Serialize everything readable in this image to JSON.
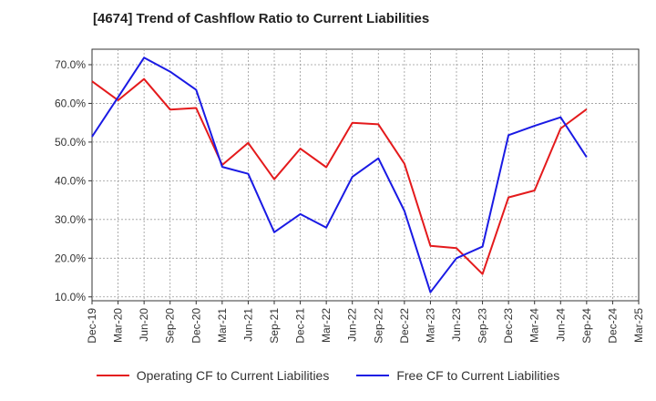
{
  "chart_data": {
    "type": "line",
    "title": "[4674]  Trend of Cashflow Ratio to Current Liabilities",
    "xlabel": "",
    "ylabel": "",
    "ylim": [
      9.0,
      74.0
    ],
    "y_ticks": [
      "10.0%",
      "20.0%",
      "30.0%",
      "40.0%",
      "50.0%",
      "60.0%",
      "70.0%"
    ],
    "y_tick_values": [
      10,
      20,
      30,
      40,
      50,
      60,
      70
    ],
    "grid": true,
    "legend_position": "bottom",
    "categories": [
      "Dec-19",
      "Mar-20",
      "Jun-20",
      "Sep-20",
      "Dec-20",
      "Mar-21",
      "Jun-21",
      "Sep-21",
      "Dec-21",
      "Mar-22",
      "Jun-22",
      "Sep-22",
      "Dec-22",
      "Mar-23",
      "Jun-23",
      "Sep-23",
      "Dec-23",
      "Mar-24",
      "Jun-24",
      "Sep-24",
      "Dec-24",
      "Mar-25"
    ],
    "series": [
      {
        "name": "Operating CF to Current Liabilities",
        "color": "#e41a1c",
        "values": [
          65.7,
          60.8,
          66.3,
          58.4,
          58.8,
          44.1,
          49.8,
          40.4,
          48.3,
          43.5,
          55.0,
          54.6,
          44.4,
          23.2,
          22.6,
          15.9,
          35.7,
          37.5,
          53.5,
          58.5,
          null,
          null
        ]
      },
      {
        "name": "Free CF to Current Liabilities",
        "color": "#1a1ae4",
        "values": [
          51.4,
          61.6,
          71.8,
          68.2,
          63.5,
          43.6,
          41.8,
          26.7,
          31.4,
          27.9,
          41.0,
          45.8,
          32.2,
          11.2,
          20.0,
          23.0,
          51.8,
          54.2,
          56.4,
          46.1,
          null,
          null
        ]
      }
    ]
  }
}
